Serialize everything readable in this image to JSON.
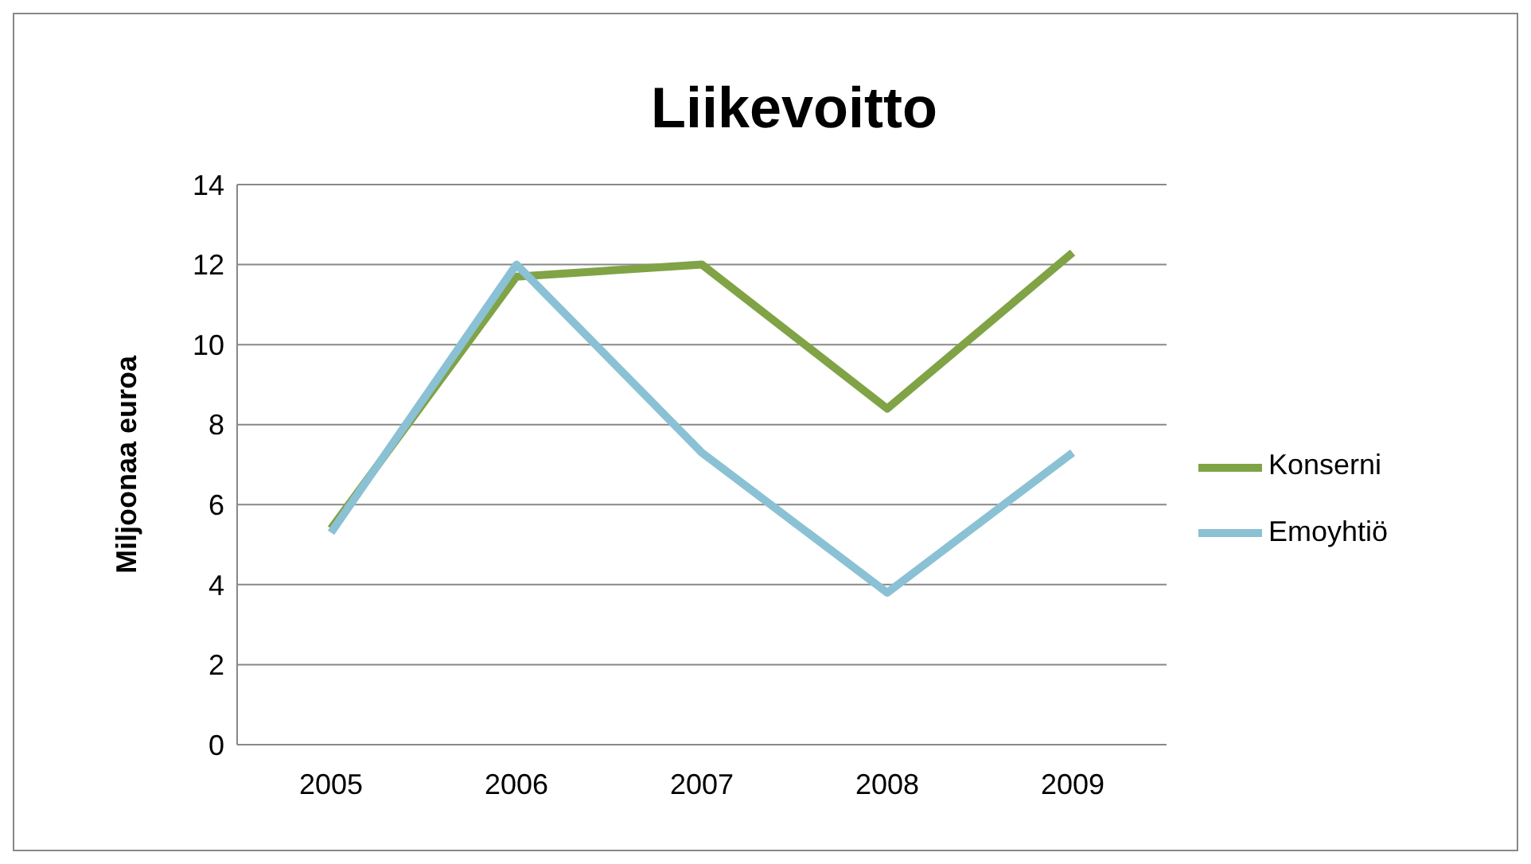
{
  "chart_data": {
    "type": "line",
    "title": "Liikevoitto",
    "ylabel": "Miljoonaa euroa",
    "categories": [
      "2005",
      "2006",
      "2007",
      "2008",
      "2009"
    ],
    "series": [
      {
        "name": "Konserni",
        "color": "#80a346",
        "values": [
          5.4,
          11.7,
          12.0,
          8.4,
          12.3
        ]
      },
      {
        "name": "Emoyhtiö",
        "color": "#8bc1d4",
        "values": [
          5.3,
          12.0,
          7.3,
          3.8,
          7.3
        ]
      }
    ],
    "ylim": [
      0,
      14
    ],
    "yticks": [
      0,
      2,
      4,
      6,
      8,
      10,
      12,
      14
    ],
    "grid": "y",
    "legend": "right",
    "marker": "none",
    "line_style": "solid"
  }
}
